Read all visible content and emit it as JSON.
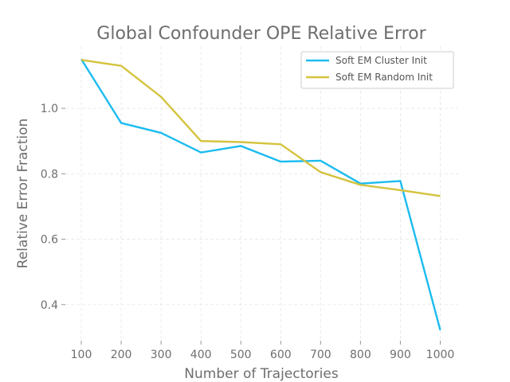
{
  "chart_data": {
    "type": "line",
    "title": "Global Confounder OPE Relative Error",
    "xlabel": "Number of Trajectories",
    "ylabel": "Relative Error Fraction",
    "x": [
      100,
      200,
      300,
      400,
      500,
      600,
      700,
      800,
      900,
      1000
    ],
    "xticks": [
      "100",
      "200",
      "300",
      "400",
      "500",
      "600",
      "700",
      "800",
      "900",
      "1000"
    ],
    "yticks": [
      0.4,
      0.6,
      0.8,
      1.0
    ],
    "ytick_labels": [
      "0.4",
      "0.6",
      "0.8",
      "1.0"
    ],
    "xlim": [
      60,
      1045
    ],
    "ylim": [
      0.29,
      1.19
    ],
    "grid": true,
    "legend_position": "top-right",
    "series": [
      {
        "name": "Soft EM Cluster Init",
        "color": "#1bbcf0",
        "values": [
          1.15,
          0.955,
          0.925,
          0.865,
          0.885,
          0.837,
          0.84,
          0.77,
          0.778,
          0.322
        ]
      },
      {
        "name": "Soft EM Random Init",
        "color": "#d4c33f",
        "values": [
          1.148,
          1.13,
          1.035,
          0.9,
          0.897,
          0.89,
          0.805,
          0.766,
          0.75,
          0.732
        ]
      }
    ]
  }
}
